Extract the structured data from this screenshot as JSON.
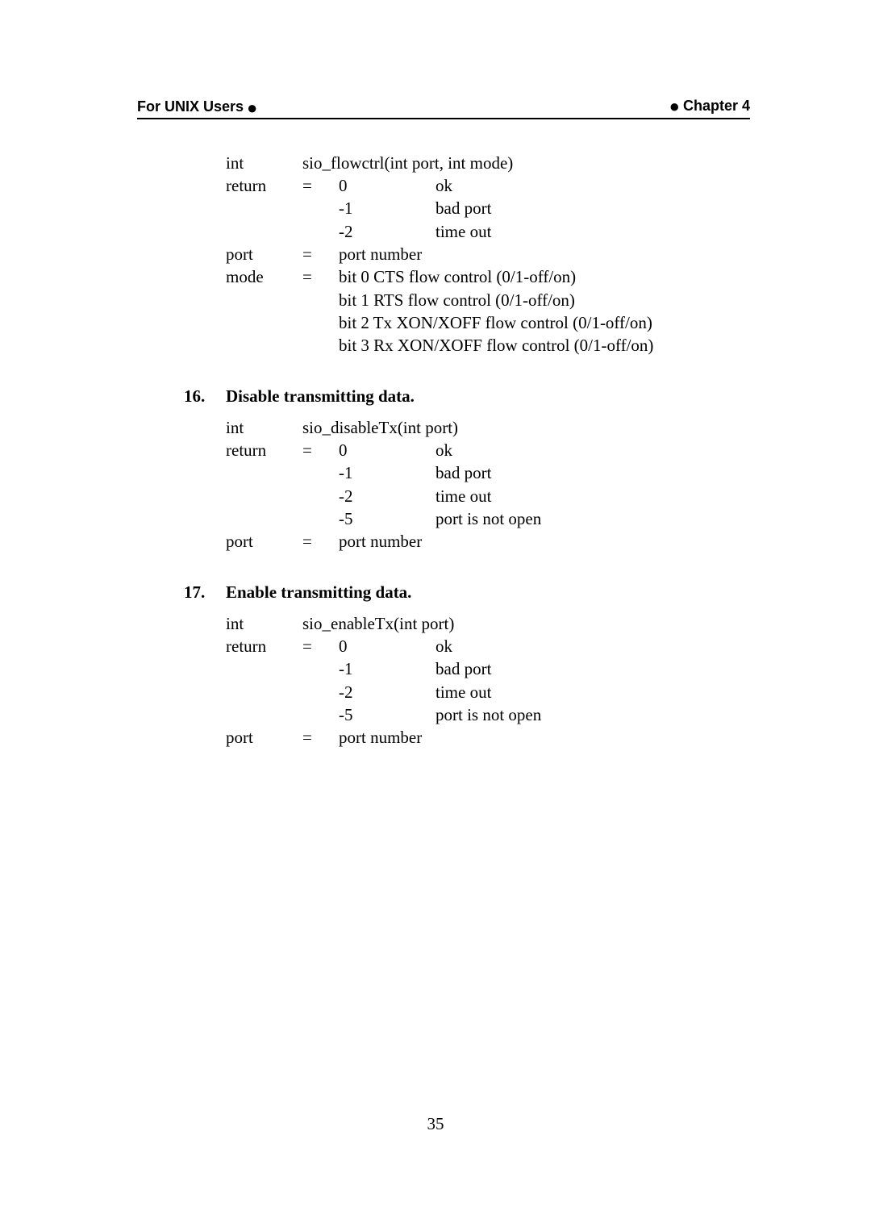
{
  "header": {
    "left_text": "For UNIX Users",
    "right_text": "Chapter 4"
  },
  "block1": {
    "sig_name": "int",
    "sig_value": "sio_flowctrl(int port, int mode)",
    "return_label": "return",
    "eq": "=",
    "r0_code": "0",
    "r0_text": "ok",
    "r1_code": "-1",
    "r1_text": "bad port",
    "r2_code": "-2",
    "r2_text": "time out",
    "port_label": "port",
    "port_val": "port number",
    "mode_label": "mode",
    "mode_l1": "bit 0 CTS flow control (0/1-off/on)",
    "mode_l2": "bit 1 RTS flow control (0/1-off/on)",
    "mode_l3": "bit 2 Tx XON/XOFF flow control (0/1-off/on)",
    "mode_l4": "bit 3 Rx XON/XOFF flow control (0/1-off/on)"
  },
  "section16": {
    "num": "16.",
    "title": "Disable transmitting data."
  },
  "block2": {
    "sig_name": "int",
    "sig_value": "sio_disableTx(int port)",
    "return_label": "return",
    "eq": "=",
    "r0_code": "0",
    "r0_text": "ok",
    "r1_code": "-1",
    "r1_text": "bad port",
    "r2_code": "-2",
    "r2_text": "time out",
    "r3_code": "-5",
    "r3_text": "port is not open",
    "port_label": "port",
    "port_val": "port number"
  },
  "section17": {
    "num": "17.",
    "title": "Enable transmitting data."
  },
  "block3": {
    "sig_name": "int",
    "sig_value": "sio_enableTx(int port)",
    "return_label": "return",
    "eq": "=",
    "r0_code": "0",
    "r0_text": "ok",
    "r1_code": "-1",
    "r1_text": "bad port",
    "r2_code": "-2",
    "r2_text": "time out",
    "r3_code": "-5",
    "r3_text": "port is not open",
    "port_label": "port",
    "port_val": "port number"
  },
  "page_number": "35"
}
